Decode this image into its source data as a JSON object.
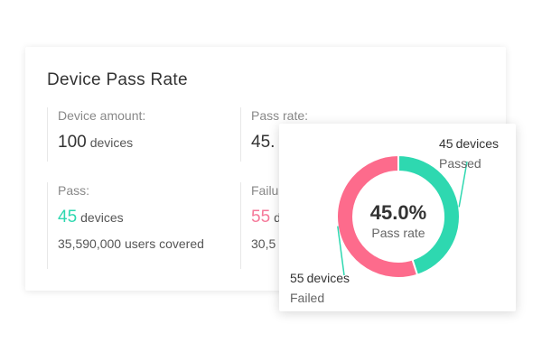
{
  "card": {
    "title": "Device Pass Rate",
    "amount": {
      "label": "Device amount:",
      "value": "100",
      "unit": "devices"
    },
    "rate": {
      "label": "Pass rate:",
      "value_partial": "45."
    },
    "pass": {
      "label": "Pass:",
      "value": "45",
      "unit": "devices",
      "sub": "35,590,000 users covered"
    },
    "fail": {
      "label": "Failu",
      "value": "55",
      "unit": "d",
      "sub": "30,5"
    }
  },
  "chart_data": {
    "type": "pie",
    "title": "",
    "center_value": "45.0%",
    "center_label": "Pass rate",
    "series": [
      {
        "name": "Passed",
        "value": 45,
        "count_label": "45",
        "unit": "devices",
        "color": "#2ed8b0"
      },
      {
        "name": "Failed",
        "value": 55,
        "count_label": "55",
        "unit": "devices",
        "color": "#fd6b8c"
      }
    ],
    "callout_color": "#2ed8b0",
    "legend": "none"
  }
}
